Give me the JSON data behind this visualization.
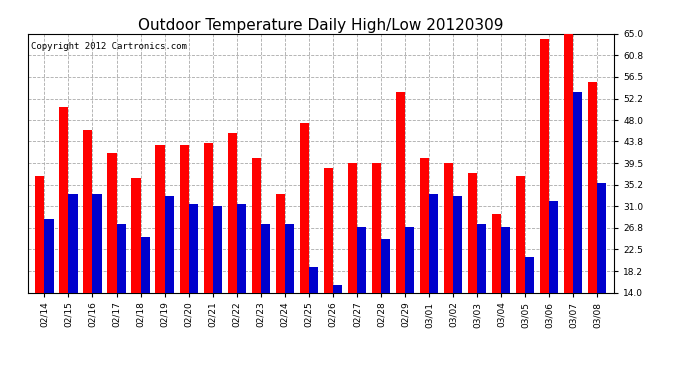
{
  "title": "Outdoor Temperature Daily High/Low 20120309",
  "copyright": "Copyright 2012 Cartronics.com",
  "dates": [
    "02/14",
    "02/15",
    "02/16",
    "02/17",
    "02/18",
    "02/19",
    "02/20",
    "02/21",
    "02/22",
    "02/23",
    "02/24",
    "02/25",
    "02/26",
    "02/27",
    "02/28",
    "02/29",
    "03/01",
    "03/02",
    "03/03",
    "03/04",
    "03/05",
    "03/06",
    "03/07",
    "03/08"
  ],
  "highs": [
    37.0,
    50.5,
    46.0,
    41.5,
    36.5,
    43.0,
    43.0,
    43.5,
    45.5,
    40.5,
    33.5,
    47.5,
    38.5,
    39.5,
    39.5,
    53.5,
    40.5,
    39.5,
    37.5,
    29.5,
    37.0,
    64.0,
    65.0,
    55.5
  ],
  "lows": [
    28.5,
    33.5,
    33.5,
    27.5,
    25.0,
    33.0,
    31.5,
    31.0,
    31.5,
    27.5,
    27.5,
    19.0,
    15.5,
    27.0,
    24.5,
    27.0,
    33.5,
    33.0,
    27.5,
    27.0,
    21.0,
    32.0,
    53.5,
    35.5
  ],
  "high_color": "#ff0000",
  "low_color": "#0000cc",
  "bg_color": "#ffffff",
  "plot_bg_color": "#ffffff",
  "grid_color": "#aaaaaa",
  "ylim": [
    14.0,
    65.0
  ],
  "yticks": [
    14.0,
    18.2,
    22.5,
    26.8,
    31.0,
    35.2,
    39.5,
    43.8,
    48.0,
    52.2,
    56.5,
    60.8,
    65.0
  ],
  "bar_width": 0.38,
  "title_fontsize": 11,
  "copyright_fontsize": 6.5,
  "tick_fontsize": 6.5,
  "ylabel_fontsize": 8
}
